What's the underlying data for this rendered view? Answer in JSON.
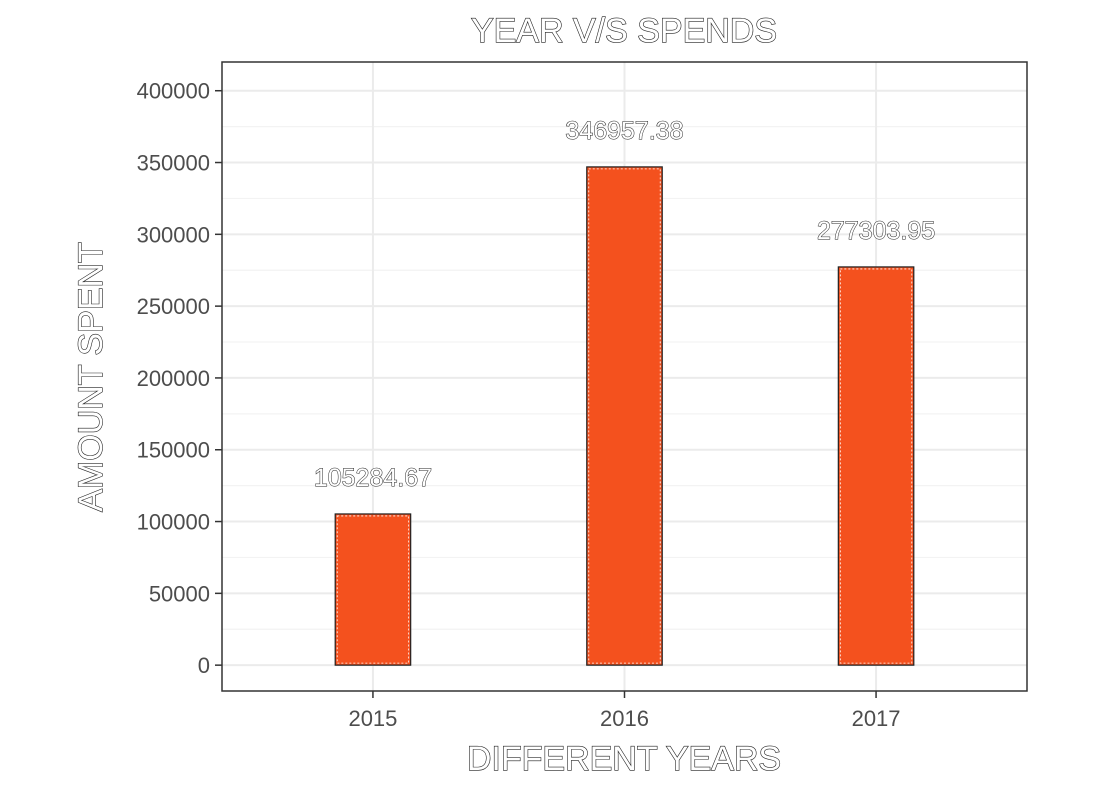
{
  "chart_data": {
    "type": "bar",
    "title": "YEAR V/S SPENDS",
    "xlabel": "DIFFERENT YEARS",
    "ylabel": "AMOUNT SPENT",
    "categories": [
      "2015",
      "2016",
      "2017"
    ],
    "values": [
      105284.67,
      346957.38,
      277303.95
    ],
    "data_labels": [
      "105284.67",
      "346957.38",
      "277303.95"
    ],
    "ylim": [
      -18000,
      420000
    ],
    "yticks": [
      0,
      50000,
      100000,
      150000,
      200000,
      250000,
      300000,
      350000,
      400000
    ],
    "ytick_labels": [
      "0",
      "50000",
      "100000",
      "150000",
      "200000",
      "250000",
      "300000",
      "350000",
      "400000"
    ],
    "grid": true,
    "legend": "none",
    "colors": {
      "bar_fill": "#f4511e",
      "bar_stroke": "#222222",
      "grid_major": "#ebebeb",
      "grid_minor": "#f3f3f3",
      "panel_border": "#333333",
      "tick_text": "#4d4d4d"
    }
  }
}
